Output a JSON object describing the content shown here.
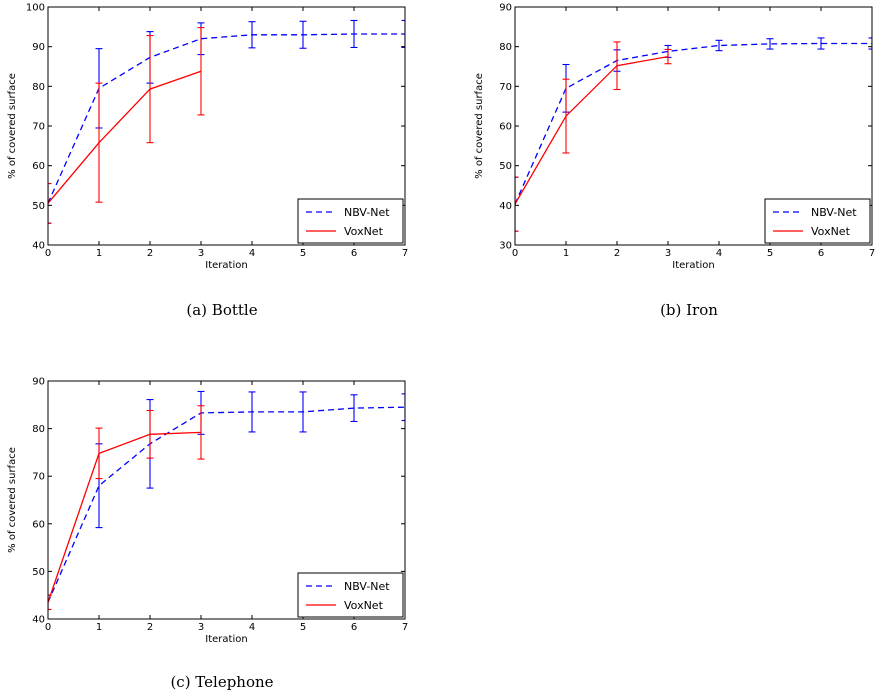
{
  "chart_data": [
    {
      "type": "line",
      "caption": "(a)  Bottle",
      "xlabel": "Iteration",
      "ylabel": "% of covered surface",
      "xlim": [
        0,
        7
      ],
      "ylim": [
        40,
        100
      ],
      "xticks": [
        0,
        1,
        2,
        3,
        4,
        5,
        6,
        7
      ],
      "yticks": [
        40,
        50,
        60,
        70,
        80,
        90,
        100
      ],
      "legend_position": "lower-right",
      "series": [
        {
          "name": "NBV-Net",
          "color": "#0000ff",
          "style": "dashed",
          "x": [
            0,
            1,
            2,
            3,
            4,
            5,
            6,
            7
          ],
          "y": [
            50.5,
            79.5,
            87.3,
            92.0,
            93.0,
            93.0,
            93.2,
            93.2
          ],
          "err": [
            5.0,
            10.0,
            6.5,
            4.0,
            3.3,
            3.4,
            3.4,
            3.4
          ]
        },
        {
          "name": "VoxNet",
          "color": "#ff0000",
          "style": "solid",
          "x": [
            0,
            1,
            2,
            3
          ],
          "y": [
            50.5,
            65.8,
            79.3,
            83.8
          ],
          "err": [
            5.0,
            15.0,
            13.5,
            11.0
          ]
        }
      ]
    },
    {
      "type": "line",
      "caption": "(b)  Iron",
      "xlabel": "Iteration",
      "ylabel": "% of covered surface",
      "xlim": [
        0,
        7
      ],
      "ylim": [
        30,
        90
      ],
      "xticks": [
        0,
        1,
        2,
        3,
        4,
        5,
        6,
        7
      ],
      "yticks": [
        30,
        40,
        50,
        60,
        70,
        80,
        90
      ],
      "legend_position": "lower-right",
      "series": [
        {
          "name": "NBV-Net",
          "color": "#0000ff",
          "style": "dashed",
          "x": [
            0,
            1,
            2,
            3,
            4,
            5,
            6,
            7
          ],
          "y": [
            40.3,
            69.5,
            76.5,
            78.8,
            80.3,
            80.7,
            80.8,
            80.8
          ],
          "err": [
            6.8,
            6.0,
            2.7,
            1.5,
            1.3,
            1.3,
            1.4,
            1.4
          ]
        },
        {
          "name": "VoxNet",
          "color": "#ff0000",
          "style": "solid",
          "x": [
            0,
            1,
            2,
            3
          ],
          "y": [
            40.3,
            62.5,
            75.2,
            77.5
          ],
          "err": [
            6.8,
            9.3,
            6.0,
            1.8
          ]
        }
      ]
    },
    {
      "type": "line",
      "caption": "(c)  Telephone",
      "xlabel": "Iteration",
      "ylabel": "% of covered surface",
      "xlim": [
        0,
        7
      ],
      "ylim": [
        40,
        90
      ],
      "xticks": [
        0,
        1,
        2,
        3,
        4,
        5,
        6,
        7
      ],
      "yticks": [
        40,
        50,
        60,
        70,
        80,
        90
      ],
      "legend_position": "lower-right",
      "series": [
        {
          "name": "NBV-Net",
          "color": "#0000ff",
          "style": "dashed",
          "x": [
            0,
            1,
            2,
            3,
            4,
            5,
            6,
            7
          ],
          "y": [
            43.5,
            68.0,
            76.8,
            83.3,
            83.5,
            83.5,
            84.3,
            84.5
          ],
          "err": [
            1.5,
            8.8,
            9.3,
            4.5,
            4.2,
            4.2,
            2.8,
            2.8
          ]
        },
        {
          "name": "VoxNet",
          "color": "#ff0000",
          "style": "solid",
          "x": [
            0,
            1,
            2,
            3
          ],
          "y": [
            43.5,
            74.8,
            78.8,
            79.2
          ],
          "err": [
            1.5,
            5.3,
            5.0,
            5.6
          ]
        }
      ]
    }
  ]
}
